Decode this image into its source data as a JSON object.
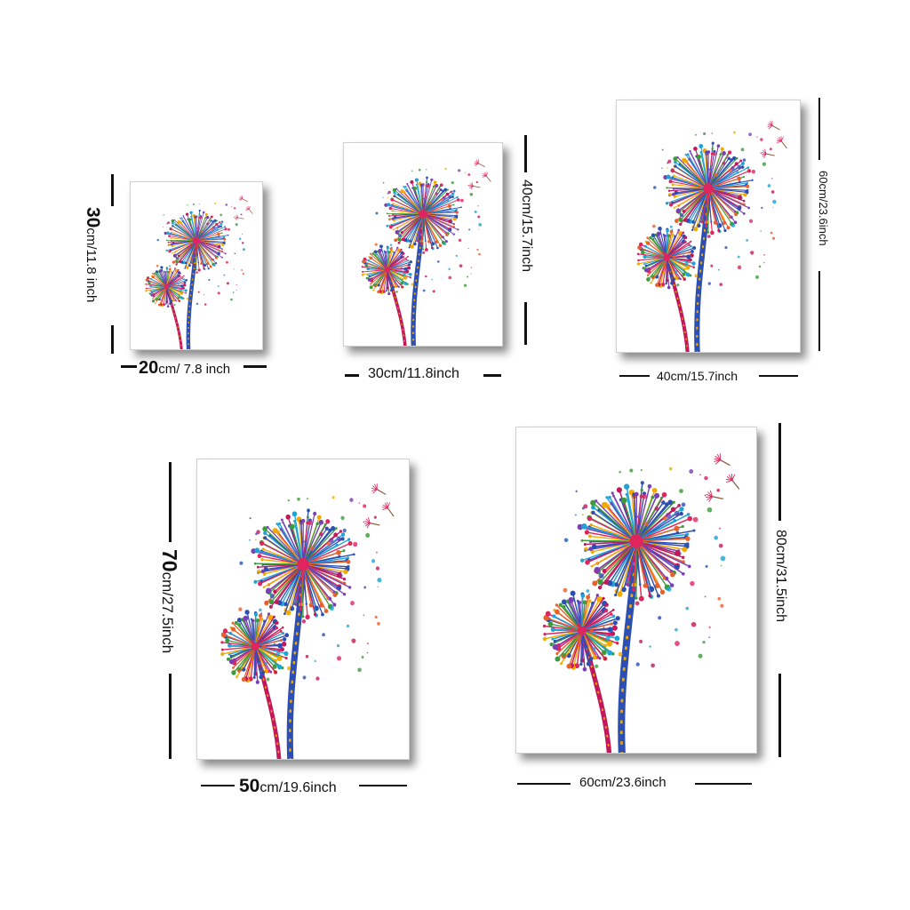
{
  "sizes": [
    {
      "big": "20",
      "rest": "cm/ 7.8 inch",
      "side": "30cm/11.8 inch",
      "side_big": "30",
      "side_rest": "cm/11.8 inch"
    },
    {
      "width": "30cm/11.8inch",
      "height": "40cm/15.7inch"
    },
    {
      "width": "40cm/15.7inch",
      "height": "60cm/23.6inch"
    },
    {
      "width_big": "50",
      "width_rest": "cm/19.6inch",
      "height_big": "70",
      "height_rest": "cm/27.5inch"
    },
    {
      "width": "60cm/23.6inch",
      "height": "80cm/31.5inch"
    }
  ],
  "artwork": "dandelion-watercolor",
  "colors": {
    "ink": "#111111",
    "shadow": "#555555"
  }
}
